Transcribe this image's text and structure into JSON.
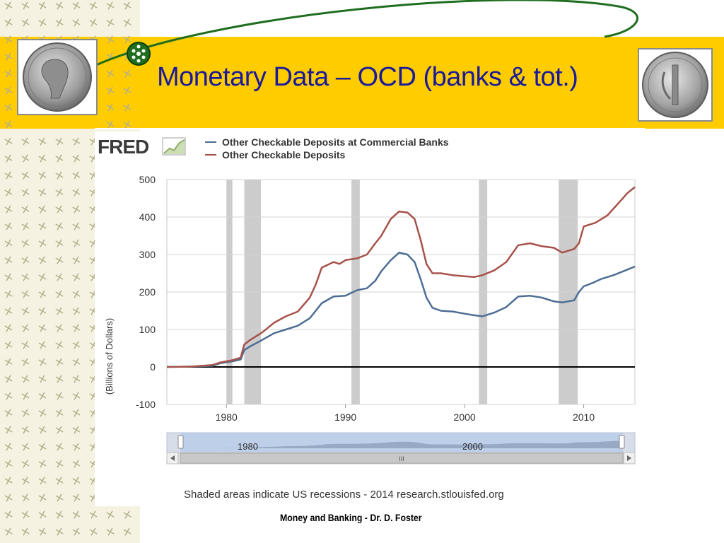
{
  "slide": {
    "title": "Monetary Data – OCD (banks & tot.)",
    "footer": "Money and Banking - Dr. D. Foster",
    "brand_color": "#ffcc00",
    "title_color": "#1a1a9a",
    "arc_color": "#1f6e1f"
  },
  "fred": {
    "logo_text": "FRED",
    "source_note": "Shaded areas indicate US recessions - 2014 research.stlouisfed.org",
    "navigator_labels": [
      "1980",
      "2000"
    ],
    "scroll_grip": "III"
  },
  "chart_data": {
    "type": "line",
    "ylabel": "(Billions of Dollars)",
    "xlabel": "",
    "xlim": [
      1975,
      2014.3
    ],
    "ylim": [
      -100,
      500
    ],
    "yticks": [
      -100,
      0,
      100,
      200,
      300,
      400,
      500
    ],
    "xticks": [
      1980,
      1990,
      2000,
      2010
    ],
    "grid": "horizontal",
    "legend_position": "top",
    "recessions": [
      [
        1980.0,
        1980.5
      ],
      [
        1981.5,
        1982.9
      ],
      [
        1990.5,
        1991.2
      ],
      [
        2001.2,
        2001.9
      ],
      [
        2007.9,
        2009.5
      ]
    ],
    "series": [
      {
        "name": "Other Checkable Deposits at Commercial Banks",
        "color": "#4d6e94",
        "points": [
          [
            1975,
            0
          ],
          [
            1977,
            1
          ],
          [
            1978.8,
            3
          ],
          [
            1979.5,
            10
          ],
          [
            1980.5,
            15
          ],
          [
            1981.2,
            20
          ],
          [
            1981.5,
            45
          ],
          [
            1982,
            55
          ],
          [
            1983,
            72
          ],
          [
            1984,
            90
          ],
          [
            1985,
            100
          ],
          [
            1986,
            110
          ],
          [
            1987,
            130
          ],
          [
            1987.5,
            150
          ],
          [
            1988,
            170
          ],
          [
            1989,
            188
          ],
          [
            1990,
            190
          ],
          [
            1990.5,
            198
          ],
          [
            1991,
            205
          ],
          [
            1991.8,
            210
          ],
          [
            1992.5,
            230
          ],
          [
            1993,
            255
          ],
          [
            1993.8,
            285
          ],
          [
            1994.5,
            305
          ],
          [
            1995.2,
            300
          ],
          [
            1995.8,
            280
          ],
          [
            1996.3,
            235
          ],
          [
            1996.8,
            185
          ],
          [
            1997.3,
            158
          ],
          [
            1998,
            150
          ],
          [
            1999,
            148
          ],
          [
            2000,
            142
          ],
          [
            2000.8,
            138
          ],
          [
            2001.5,
            135
          ],
          [
            2002.5,
            145
          ],
          [
            2003.5,
            160
          ],
          [
            2004.5,
            188
          ],
          [
            2005.5,
            190
          ],
          [
            2006.5,
            185
          ],
          [
            2007.5,
            175
          ],
          [
            2008.2,
            172
          ],
          [
            2009.2,
            178
          ],
          [
            2009.6,
            200
          ],
          [
            2010,
            215
          ],
          [
            2010.8,
            225
          ],
          [
            2011.5,
            235
          ],
          [
            2012.5,
            245
          ],
          [
            2013.3,
            255
          ],
          [
            2014.3,
            268
          ]
        ]
      },
      {
        "name": "Other Checkable Deposits",
        "color": "#a6524a",
        "points": [
          [
            1975,
            0
          ],
          [
            1977,
            1
          ],
          [
            1978.8,
            5
          ],
          [
            1979.5,
            12
          ],
          [
            1980.5,
            18
          ],
          [
            1981.2,
            25
          ],
          [
            1981.5,
            60
          ],
          [
            1982,
            72
          ],
          [
            1983,
            92
          ],
          [
            1984,
            118
          ],
          [
            1985,
            135
          ],
          [
            1986,
            148
          ],
          [
            1987,
            185
          ],
          [
            1987.5,
            220
          ],
          [
            1988,
            265
          ],
          [
            1989,
            280
          ],
          [
            1989.5,
            275
          ],
          [
            1990,
            285
          ],
          [
            1991,
            290
          ],
          [
            1991.8,
            300
          ],
          [
            1992.5,
            330
          ],
          [
            1993,
            350
          ],
          [
            1993.8,
            395
          ],
          [
            1994.5,
            415
          ],
          [
            1995.2,
            412
          ],
          [
            1995.8,
            395
          ],
          [
            1996.3,
            340
          ],
          [
            1996.8,
            275
          ],
          [
            1997.3,
            250
          ],
          [
            1998,
            250
          ],
          [
            1999,
            245
          ],
          [
            2000,
            242
          ],
          [
            2000.8,
            240
          ],
          [
            2001.5,
            245
          ],
          [
            2002.5,
            258
          ],
          [
            2003.5,
            280
          ],
          [
            2004.5,
            325
          ],
          [
            2005.5,
            330
          ],
          [
            2006.5,
            322
          ],
          [
            2007.5,
            318
          ],
          [
            2008.2,
            305
          ],
          [
            2009.2,
            315
          ],
          [
            2009.6,
            330
          ],
          [
            2010,
            375
          ],
          [
            2011,
            385
          ],
          [
            2012,
            405
          ],
          [
            2013,
            440
          ],
          [
            2013.7,
            465
          ],
          [
            2014.3,
            480
          ]
        ]
      }
    ]
  }
}
